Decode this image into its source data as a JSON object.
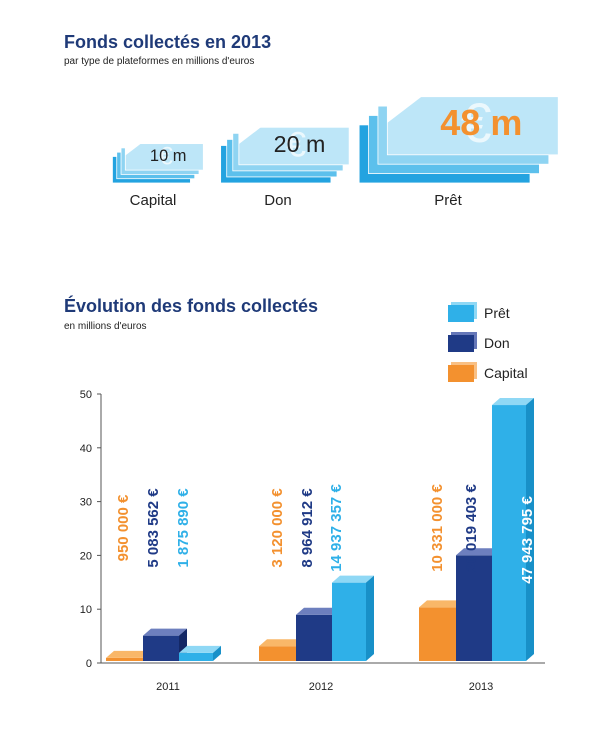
{
  "top": {
    "title": "Fonds collectés en 2013",
    "subtitle": "par type de plateformes en millions d'euros",
    "items": [
      {
        "label": "Capital",
        "amount_label": "10 m",
        "value": 10
      },
      {
        "label": "Don",
        "amount_label": "20 m",
        "value": 20
      },
      {
        "label": "Prêt",
        "amount_label": "48 m",
        "value": 48
      }
    ]
  },
  "bottom": {
    "title": "Évolution des fonds collectés",
    "subtitle": "en millions d'euros"
  },
  "legend": [
    {
      "name": "Prêt",
      "color": "#2fb0e8"
    },
    {
      "name": "Don",
      "color": "#1f3a86"
    },
    {
      "name": "Capital",
      "color": "#f3912f"
    }
  ],
  "colors": {
    "title": "#1f3a78",
    "accent_orange": "#f3912f"
  },
  "chart_data": {
    "type": "bar",
    "categories": [
      "2011",
      "2012",
      "2013"
    ],
    "ylim": [
      0,
      50
    ],
    "yticks": [
      0,
      10,
      20,
      30,
      40,
      50
    ],
    "series": [
      {
        "name": "Capital",
        "values": [
          0.95,
          3.12,
          10.331
        ],
        "labels": [
          "950 000 €",
          "3 120 000 €",
          "10 331 000 €"
        ],
        "color": "#f3912f"
      },
      {
        "name": "Don",
        "values": [
          5.083562,
          8.964912,
          20.019403
        ],
        "labels": [
          "5 083 562 €",
          "8 964 912 €",
          "20 019 403 €"
        ],
        "color": "#1f3a86"
      },
      {
        "name": "Prêt",
        "values": [
          1.87589,
          14.937357,
          47.943795
        ],
        "labels": [
          "1 875 890 €",
          "14 937 357 €",
          "47 943 795 €"
        ],
        "color": "#2fb0e8"
      }
    ]
  }
}
